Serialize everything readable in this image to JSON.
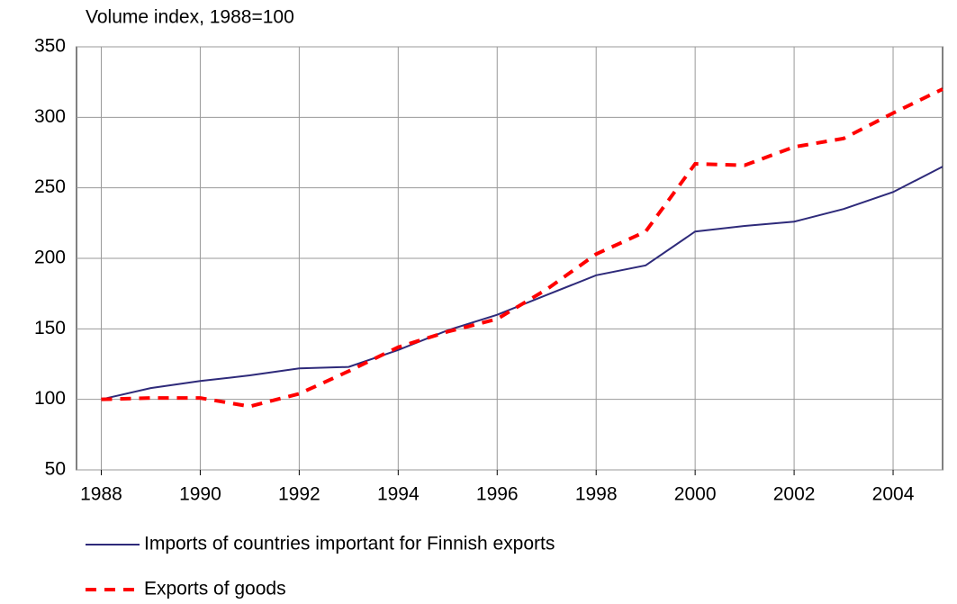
{
  "chart_data": {
    "type": "line",
    "title": "Volume index, 1988=100",
    "x": [
      1988,
      1989,
      1990,
      1991,
      1992,
      1993,
      1994,
      1995,
      1996,
      1997,
      1998,
      1999,
      2000,
      2001,
      2002,
      2003,
      2004,
      2005
    ],
    "series": [
      {
        "name": "Imports of countries important for Finnish exports",
        "color": "#2e2a7a",
        "dash": "solid",
        "values": [
          100,
          108,
          113,
          117,
          122,
          123,
          135,
          149,
          160,
          174,
          188,
          195,
          219,
          223,
          226,
          235,
          247,
          265
        ]
      },
      {
        "name": "Exports of goods",
        "color": "#ff0000",
        "dash": "dashed",
        "values": [
          100,
          101,
          101,
          95,
          104,
          120,
          137,
          148,
          157,
          178,
          203,
          219,
          267,
          266,
          279,
          285,
          303,
          320
        ]
      }
    ],
    "xlim": [
      1987.5,
      2005
    ],
    "xticks": [
      1988,
      1990,
      1992,
      1994,
      1996,
      1998,
      2000,
      2002,
      2004
    ],
    "ylim": [
      50,
      350
    ],
    "yticks": [
      50,
      100,
      150,
      200,
      250,
      300,
      350
    ],
    "grid": true
  }
}
